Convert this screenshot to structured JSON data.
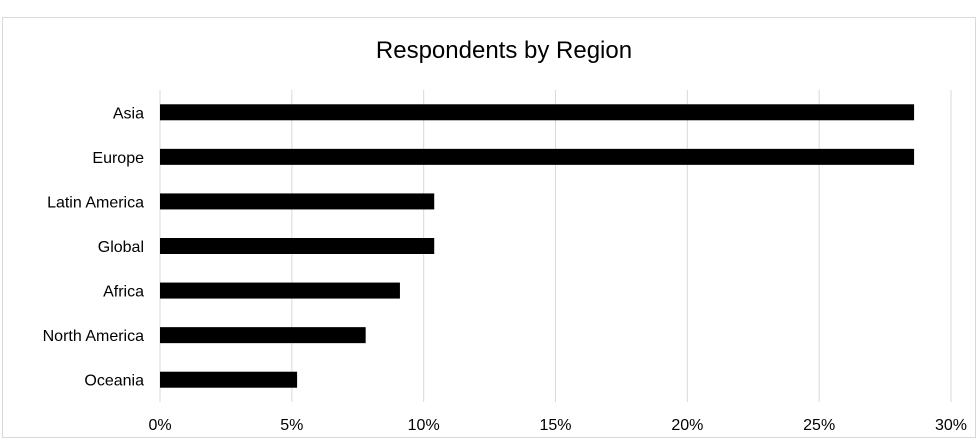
{
  "chart_data": {
    "type": "bar",
    "orientation": "horizontal",
    "title": "Respondents by Region",
    "categories": [
      "Asia",
      "Europe",
      "Latin America",
      "Global",
      "Africa",
      "North America",
      "Oceania"
    ],
    "values": [
      28.6,
      28.6,
      10.4,
      10.4,
      9.1,
      7.8,
      5.2
    ],
    "xlim": [
      0,
      30
    ],
    "x_ticks": [
      0,
      5,
      10,
      15,
      20,
      25,
      30
    ],
    "x_tick_labels": [
      "0%",
      "5%",
      "10%",
      "15%",
      "20%",
      "25%",
      "30%"
    ],
    "xlabel": "",
    "ylabel": "",
    "grid": "vertical",
    "legend": "none",
    "colors": {
      "bar": "#000000",
      "grid": "#d9d9d9",
      "border": "#d9d9d9"
    }
  }
}
